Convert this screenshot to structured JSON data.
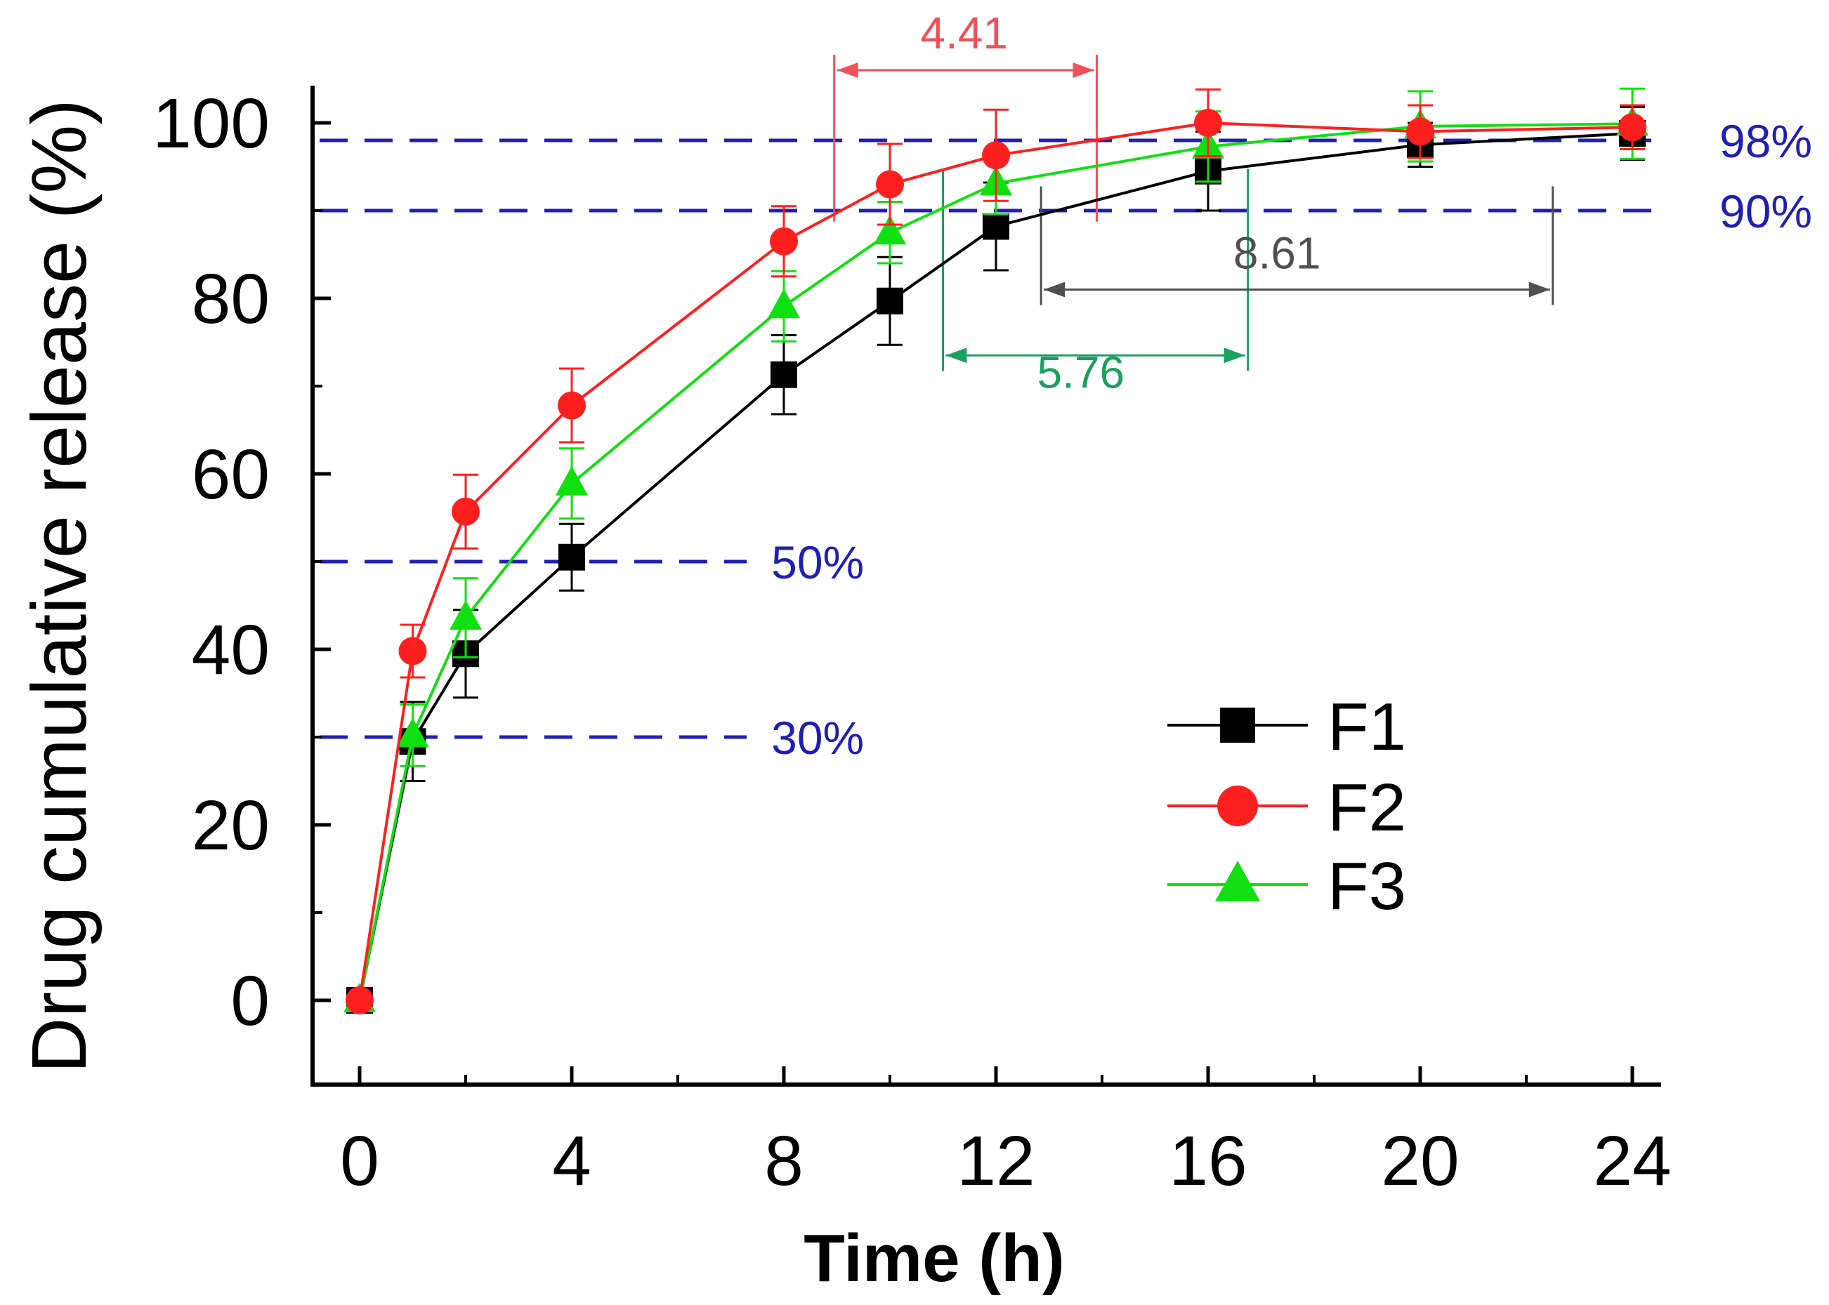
{
  "chart_data": {
    "type": "line",
    "title": "",
    "xlabel": "Time (h)",
    "ylabel": "Drug cumulative release (%)",
    "xlim": [
      -2,
      24.6
    ],
    "ylim": [
      -10,
      104
    ],
    "xticks": [
      0,
      4,
      8,
      12,
      16,
      20,
      24
    ],
    "xtick_labels": [
      "0",
      "4",
      "8",
      "12",
      "16",
      "20",
      "24"
    ],
    "yticks": [
      0,
      20,
      40,
      60,
      80,
      100
    ],
    "ytick_labels": [
      "0",
      "20",
      "40",
      "60",
      "80",
      "100"
    ],
    "x": [
      0,
      1,
      2,
      4,
      8,
      10,
      12,
      16,
      20,
      24
    ],
    "series": [
      {
        "name": "F1",
        "color": "#000000",
        "marker": "square",
        "values": [
          0,
          29.5,
          39.5,
          50.5,
          71.3,
          79.7,
          88.2,
          94.5,
          97.5,
          98.8
        ],
        "errors": [
          0,
          4.5,
          5.0,
          3.8,
          4.5,
          5.0,
          5.0,
          4.5,
          2.5,
          3.0
        ]
      },
      {
        "name": "F2",
        "color": "#ff1f1f",
        "marker": "circle",
        "values": [
          0,
          39.8,
          55.7,
          67.8,
          86.5,
          93.0,
          96.3,
          100.0,
          99.0,
          99.5
        ],
        "errors": [
          0,
          3.0,
          4.2,
          4.2,
          4.0,
          4.6,
          5.2,
          3.8,
          3.0,
          2.5
        ]
      },
      {
        "name": "F3",
        "color": "#10e010",
        "marker": "triangle",
        "values": [
          0,
          30.2,
          43.6,
          58.9,
          79.1,
          87.5,
          93.1,
          97.3,
          99.6,
          99.9
        ],
        "errors": [
          0,
          3.5,
          4.5,
          4.0,
          4.0,
          3.5,
          3.5,
          4.0,
          4.0,
          4.0
        ]
      }
    ],
    "reference_lines": [
      {
        "y": 98,
        "label": "98%",
        "x_from": -2,
        "x_to": 24.6
      },
      {
        "y": 90,
        "label": "90%",
        "x_from": -2,
        "x_to": 24.6
      },
      {
        "y": 50,
        "label": "50%",
        "x_from": -2,
        "x_to": 7.3
      },
      {
        "y": 30,
        "label": "30%",
        "x_from": -2,
        "x_to": 7.3
      }
    ],
    "reference_color": "#1f1fb4",
    "annotations": [
      {
        "label": "4.41",
        "color": "#f0505a",
        "x_start": 8.95,
        "x_end": 13.9,
        "y_arrow": 106,
        "y_bottom": 90.5,
        "label_x": 11.4,
        "label_y": 108.5
      },
      {
        "label": "5.76",
        "color": "#1aa060",
        "x_start": 11.0,
        "x_end": 16.75,
        "y_arrow": 73.5,
        "y_bottom": 93.0,
        "label_x": 13.6,
        "label_y": 69.8
      },
      {
        "label": "8.61",
        "color": "#505050",
        "x_start": 12.85,
        "x_end": 22.5,
        "y_arrow": 81.0,
        "y_bottom": 91.0,
        "label_x": 17.3,
        "label_y": 83.4
      }
    ],
    "legend": {
      "position": "center-right",
      "entries": [
        "F1",
        "F2",
        "F3"
      ]
    }
  }
}
